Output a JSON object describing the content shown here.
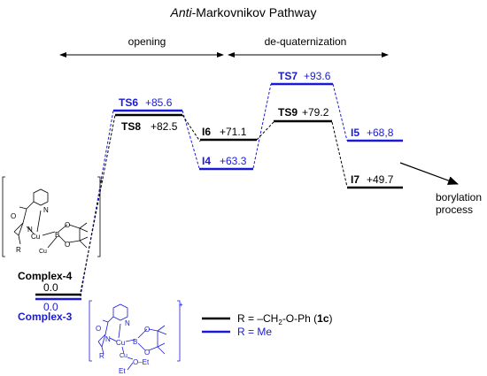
{
  "title": {
    "italic_part": "Anti",
    "rest": "-Markovnikov Pathway"
  },
  "colors": {
    "black_path": "#000000",
    "blue_path": "#1a1ad6"
  },
  "ranges": {
    "opening": "opening",
    "dequat": "de-quaternization"
  },
  "states": {
    "ts6": {
      "name": "TS6",
      "energy": "+85.6"
    },
    "ts8": {
      "name": "TS8",
      "energy": "+82.5"
    },
    "i6": {
      "name": "I6",
      "energy": "+71.1"
    },
    "i4": {
      "name": "I4",
      "energy": "+63.3"
    },
    "ts7": {
      "name": "TS7",
      "energy": "+93.6"
    },
    "ts9": {
      "name": "TS9",
      "energy": "+79.2"
    },
    "i5": {
      "name": "I5",
      "energy": "+68,8"
    },
    "i7": {
      "name": "I7",
      "energy": "+49.7"
    },
    "complex4": {
      "name": "Complex-4",
      "energy": "0.0"
    },
    "complex3": {
      "name": "Complex-3",
      "energy": "0.0"
    }
  },
  "borylation": {
    "line1": "borylation",
    "line2": "process"
  },
  "legend": {
    "black": {
      "prefix": "R = –CH",
      "sub": "2",
      "mid": "-O-Ph (",
      "bold": "1c",
      "suffix": ")"
    },
    "blue": "R = Me"
  },
  "molecule_top": {
    "charge": "+",
    "o": "O",
    "n1": "N",
    "n2": "N",
    "cu1": "Cu",
    "cu2": "Cu",
    "b": "B",
    "o1": "O",
    "o2": "O",
    "r": "R"
  },
  "molecule_bottom": {
    "charge": "+",
    "o": "O",
    "n1": "N",
    "n2": "N",
    "cu1": "Cu",
    "cu2": "Cu",
    "b": "B",
    "o1": "O",
    "o2": "O",
    "r": "R",
    "oet": "O–Et",
    "et": "Et"
  }
}
